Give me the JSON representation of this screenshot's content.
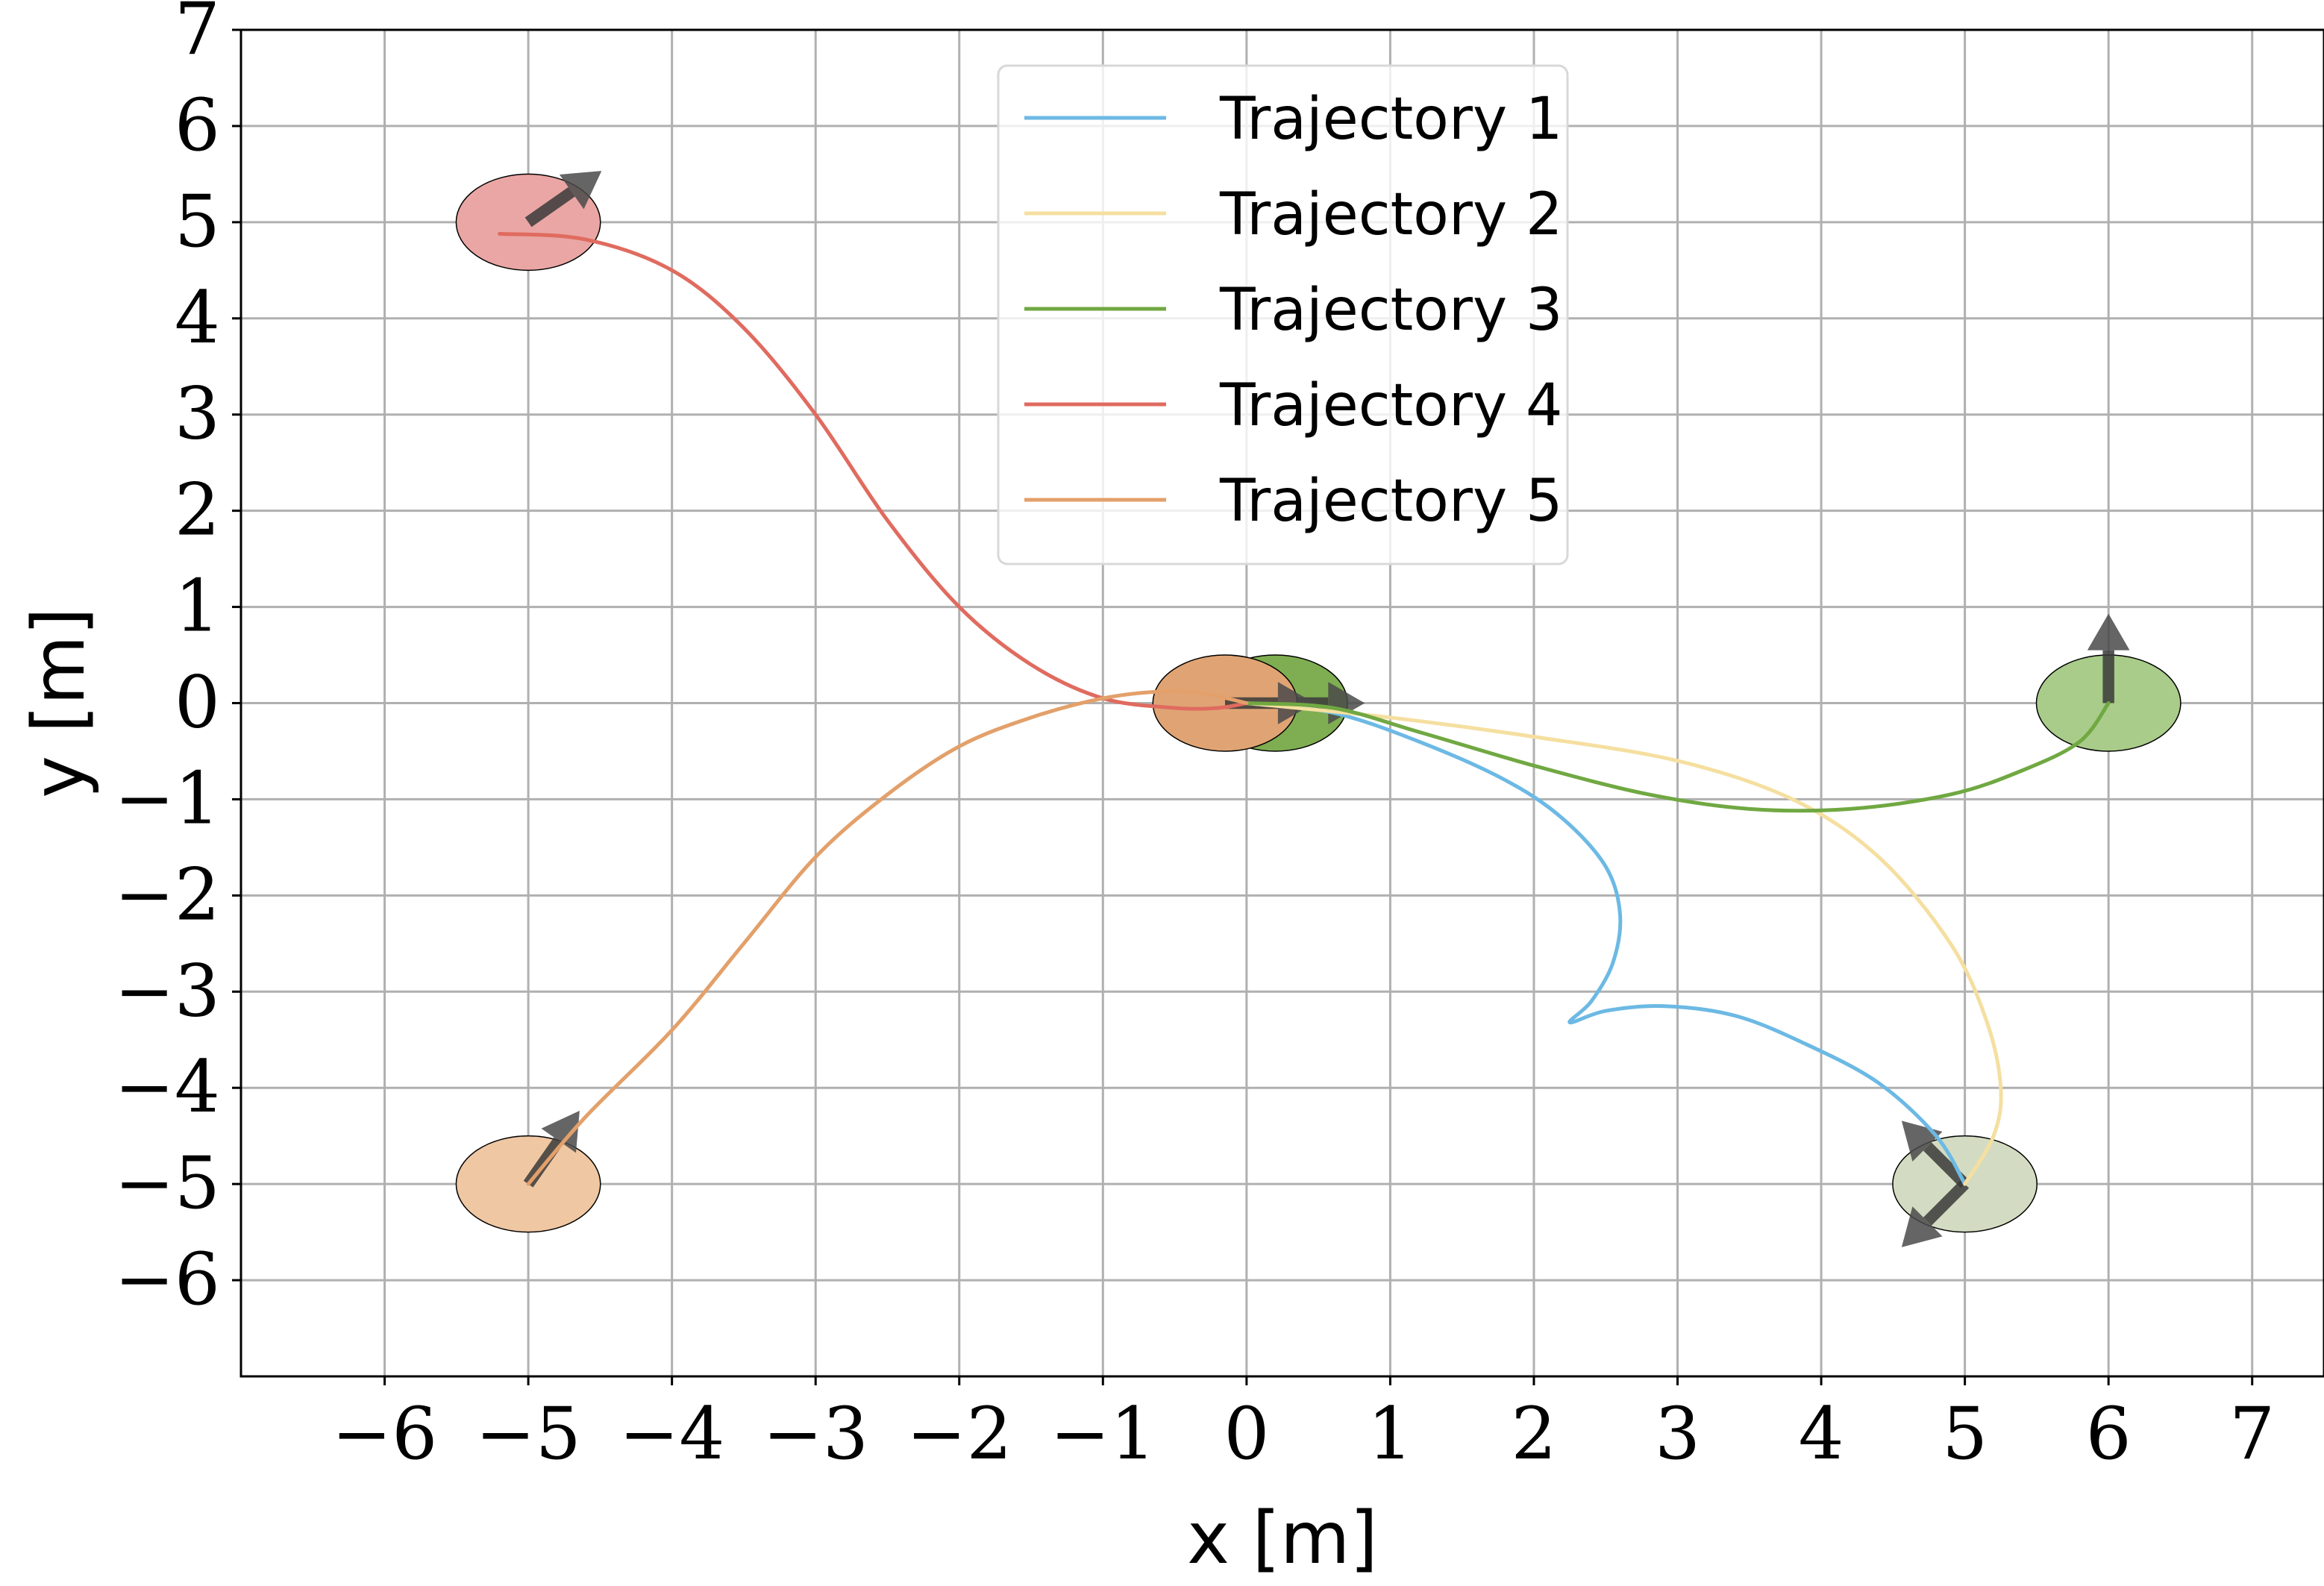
{
  "chart_data": {
    "type": "line",
    "xlabel": "x [m]",
    "ylabel": "y [m]",
    "xlim": [
      -7,
      7.5
    ],
    "ylim": [
      -7,
      7
    ],
    "xticks": [
      -6,
      -5,
      -4,
      -3,
      -2,
      -1,
      0,
      1,
      2,
      3,
      4,
      5,
      6,
      7
    ],
    "yticks": [
      -6,
      -5,
      -4,
      -3,
      -2,
      -1,
      0,
      1,
      2,
      3,
      4,
      5,
      6,
      7
    ],
    "xtick_labels": [
      "−6",
      "−5",
      "−4",
      "−3",
      "−2",
      "−1",
      "0",
      "1",
      "2",
      "3",
      "4",
      "5",
      "6",
      "7"
    ],
    "ytick_labels": [
      "−6",
      "−5",
      "−4",
      "−3",
      "−2",
      "−1",
      "0",
      "1",
      "2",
      "3",
      "4",
      "5",
      "6",
      "7"
    ],
    "grid": true,
    "legend_position": "top-center",
    "series": [
      {
        "name": "Trajectory 1",
        "color": "#6cb9e4",
        "x": [
          0.0,
          0.6,
          1.2,
          1.8,
          2.2,
          2.5,
          2.6,
          2.55,
          2.4,
          2.25,
          2.5,
          2.9,
          3.4,
          3.9,
          4.4,
          4.8,
          5.0
        ],
        "y": [
          0.0,
          -0.1,
          -0.4,
          -0.8,
          -1.2,
          -1.7,
          -2.2,
          -2.7,
          -3.1,
          -3.32,
          -3.2,
          -3.15,
          -3.25,
          -3.55,
          -3.95,
          -4.5,
          -5.0
        ]
      },
      {
        "name": "Trajectory 2",
        "color": "#f5dfa0",
        "x": [
          0.0,
          1.0,
          2.0,
          3.0,
          3.8,
          4.4,
          4.9,
          5.15,
          5.25,
          5.2,
          5.0
        ],
        "y": [
          0.0,
          -0.15,
          -0.35,
          -0.6,
          -1.0,
          -1.6,
          -2.5,
          -3.3,
          -4.0,
          -4.5,
          -5.0
        ]
      },
      {
        "name": "Trajectory 3",
        "color": "#70a842",
        "x": [
          0.0,
          0.6,
          1.2,
          2.0,
          2.8,
          3.5,
          4.2,
          4.9,
          5.4,
          5.8,
          6.0
        ],
        "y": [
          0.0,
          -0.05,
          -0.3,
          -0.65,
          -0.95,
          -1.1,
          -1.1,
          -0.95,
          -0.7,
          -0.4,
          0.0
        ]
      },
      {
        "name": "Trajectory 4",
        "color": "#e06b5f",
        "x": [
          -5.2,
          -4.6,
          -4.0,
          -3.5,
          -3.0,
          -2.5,
          -2.0,
          -1.5,
          -1.0,
          -0.5,
          -0.2,
          0.0
        ],
        "y": [
          4.88,
          4.82,
          4.5,
          3.9,
          3.0,
          1.9,
          1.0,
          0.4,
          0.05,
          -0.05,
          -0.05,
          0.0
        ]
      },
      {
        "name": "Trajectory 5",
        "color": "#e3a06a",
        "x": [
          -5.0,
          -4.6,
          -4.0,
          -3.5,
          -3.0,
          -2.5,
          -2.0,
          -1.5,
          -1.0,
          -0.6,
          -0.3,
          0.0
        ],
        "y": [
          -5.0,
          -4.3,
          -3.4,
          -2.5,
          -1.6,
          -0.95,
          -0.45,
          -0.15,
          0.05,
          0.12,
          0.1,
          0.0
        ]
      }
    ],
    "robots": [
      {
        "x": 5.0,
        "y": -5.0,
        "fill": "#d3dcc2",
        "heading_deg": 225,
        "second_heading_deg": 135
      },
      {
        "x": 6.0,
        "y": 0.0,
        "fill": "#a9cc8a",
        "heading_deg": 90
      },
      {
        "x": -5.0,
        "y": 5.0,
        "fill": "#eaa6a4",
        "heading_deg": 35
      },
      {
        "x": -5.0,
        "y": -5.0,
        "fill": "#f0c7a3",
        "heading_deg": 55
      },
      {
        "x": 0.2,
        "y": 0.0,
        "fill": "#7fae52",
        "heading_deg": 0
      },
      {
        "x": -0.15,
        "y": 0.0,
        "fill": "#e0a474",
        "heading_deg": 0
      }
    ]
  }
}
